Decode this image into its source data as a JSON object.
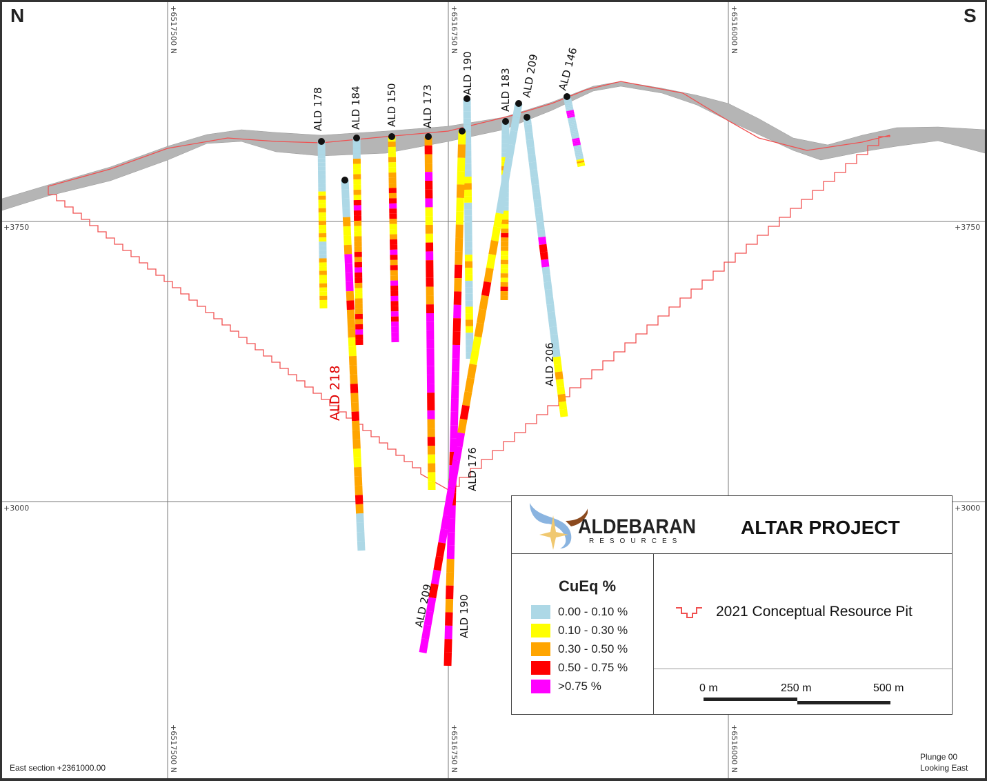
{
  "directions": {
    "north": "N",
    "south": "S"
  },
  "grid": {
    "northings": [
      "+6517500 N",
      "+6516750 N",
      "+6516000 N"
    ],
    "elevations": [
      "+3750",
      "+3000"
    ]
  },
  "drillholes": [
    {
      "id": "ald178",
      "label": "ALD 178"
    },
    {
      "id": "ald184",
      "label": "ALD 184"
    },
    {
      "id": "ald150",
      "label": "ALD 150"
    },
    {
      "id": "ald173",
      "label": "ALD 173"
    },
    {
      "id": "ald190",
      "label": "ALD 190"
    },
    {
      "id": "ald183",
      "label": "ALD 183"
    },
    {
      "id": "ald209",
      "label": "ALD 209"
    },
    {
      "id": "ald146",
      "label": "ALD 146"
    },
    {
      "id": "ald218",
      "label": "ALD 218",
      "color": "#e00000"
    },
    {
      "id": "ald206",
      "label": "ALD 206"
    },
    {
      "id": "ald176",
      "label": "ALD 176"
    },
    {
      "id": "ald209b",
      "label": "ALD 209"
    },
    {
      "id": "ald190b",
      "label": "ALD 190"
    }
  ],
  "legend": {
    "logo": {
      "name": "ALDEBARAN",
      "sub": "RESOURCES"
    },
    "project": "ALTAR PROJECT",
    "cueq_title": "CuEq %",
    "cueq_classes": [
      {
        "label": "0.00 - 0.10 %",
        "color": "#add8e6"
      },
      {
        "label": "0.10 - 0.30 %",
        "color": "#ffff00"
      },
      {
        "label": "0.30 - 0.50 %",
        "color": "#ffa500"
      },
      {
        "label": "0.50 - 0.75 %",
        "color": "#ff0000"
      },
      {
        "label": ">0.75 %",
        "color": "#ff00ff"
      }
    ],
    "pit_label": "2021 Conceptual Resource Pit",
    "pit_color": "#f05050",
    "scale": [
      "0 m",
      "250 m",
      "500 m"
    ]
  },
  "footer": {
    "section": "East section +2361000.00",
    "plunge": "Plunge 00",
    "looking": "Looking East"
  }
}
